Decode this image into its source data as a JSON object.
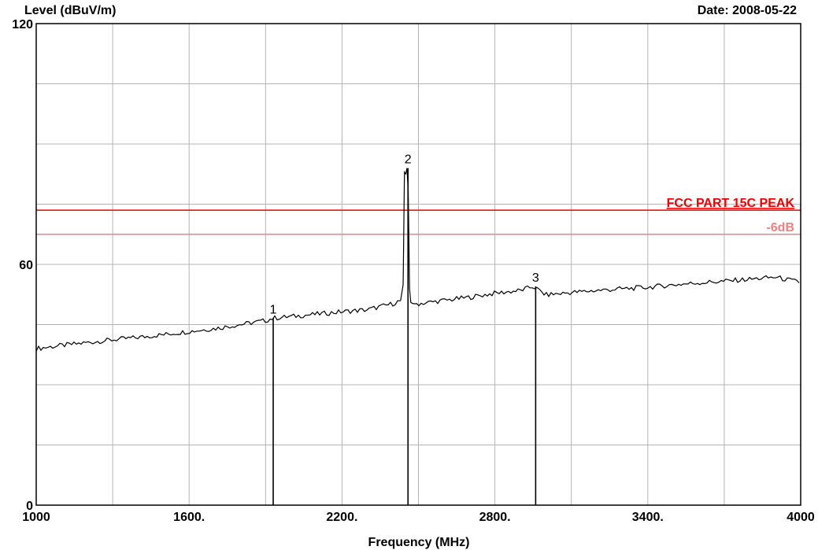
{
  "chart_data": {
    "type": "line",
    "ylabel": "Level (dBuV/m)",
    "xlabel": "Frequency (MHz)",
    "date_text": "Date: 2008-05-22",
    "xlim": [
      1000,
      4000
    ],
    "ylim": [
      0,
      120
    ],
    "grid": true,
    "x_ticks": [
      {
        "value": 1000,
        "label": "1000"
      },
      {
        "value": 1600,
        "label": "1600."
      },
      {
        "value": 2200,
        "label": "2200."
      },
      {
        "value": 2800,
        "label": "2800."
      },
      {
        "value": 3400,
        "label": "3400."
      },
      {
        "value": 4000,
        "label": "4000"
      }
    ],
    "y_ticks": [
      {
        "value": 0,
        "label": "0"
      },
      {
        "value": 60,
        "label": "60"
      },
      {
        "value": 120,
        "label": "120"
      }
    ],
    "x_gridlines": [
      1000,
      1300,
      1600,
      1900,
      2200,
      2500,
      2800,
      3100,
      3400,
      3700,
      4000
    ],
    "y_gridlines": [
      0,
      15,
      30,
      45,
      60,
      75,
      90,
      105,
      120
    ],
    "limit_lines": [
      {
        "label": "FCC PART 15C  PEAK",
        "value": 73.5,
        "color": "#ee0000"
      },
      {
        "label": "-6dB",
        "value": 67.5,
        "color": "#f08080"
      }
    ],
    "series": [
      {
        "color": "#000000",
        "x": [
          1000,
          1100,
          1200,
          1300,
          1400,
          1500,
          1600,
          1700,
          1800,
          1900,
          1930,
          2000,
          2100,
          2200,
          2300,
          2400,
          2430,
          2440,
          2445,
          2450,
          2455,
          2460,
          2465,
          2470,
          2480,
          2500,
          2600,
          2700,
          2800,
          2900,
          2950,
          3000,
          3100,
          3200,
          3300,
          3400,
          3500,
          3600,
          3700,
          3800,
          3900,
          4000
        ],
        "y": [
          39,
          39.8,
          40.5,
          41.2,
          41.8,
          42.5,
          43.3,
          44,
          45,
          46,
          46.6,
          47,
          47.6,
          48.2,
          48.7,
          50.2,
          51,
          55,
          83,
          82.5,
          84,
          78,
          54,
          50.5,
          50.2,
          50.2,
          51,
          51.8,
          52.8,
          53.5,
          54.5,
          52.4,
          53,
          53.5,
          53.9,
          54.3,
          54.9,
          55.4,
          55.8,
          56.3,
          56.8,
          55.5
        ]
      }
    ],
    "markers": [
      {
        "label": "1",
        "x": 1930,
        "y": 46.6
      },
      {
        "label": "2",
        "x": 2459,
        "y": 84
      },
      {
        "label": "3",
        "x": 2960,
        "y": 54.5
      }
    ]
  }
}
